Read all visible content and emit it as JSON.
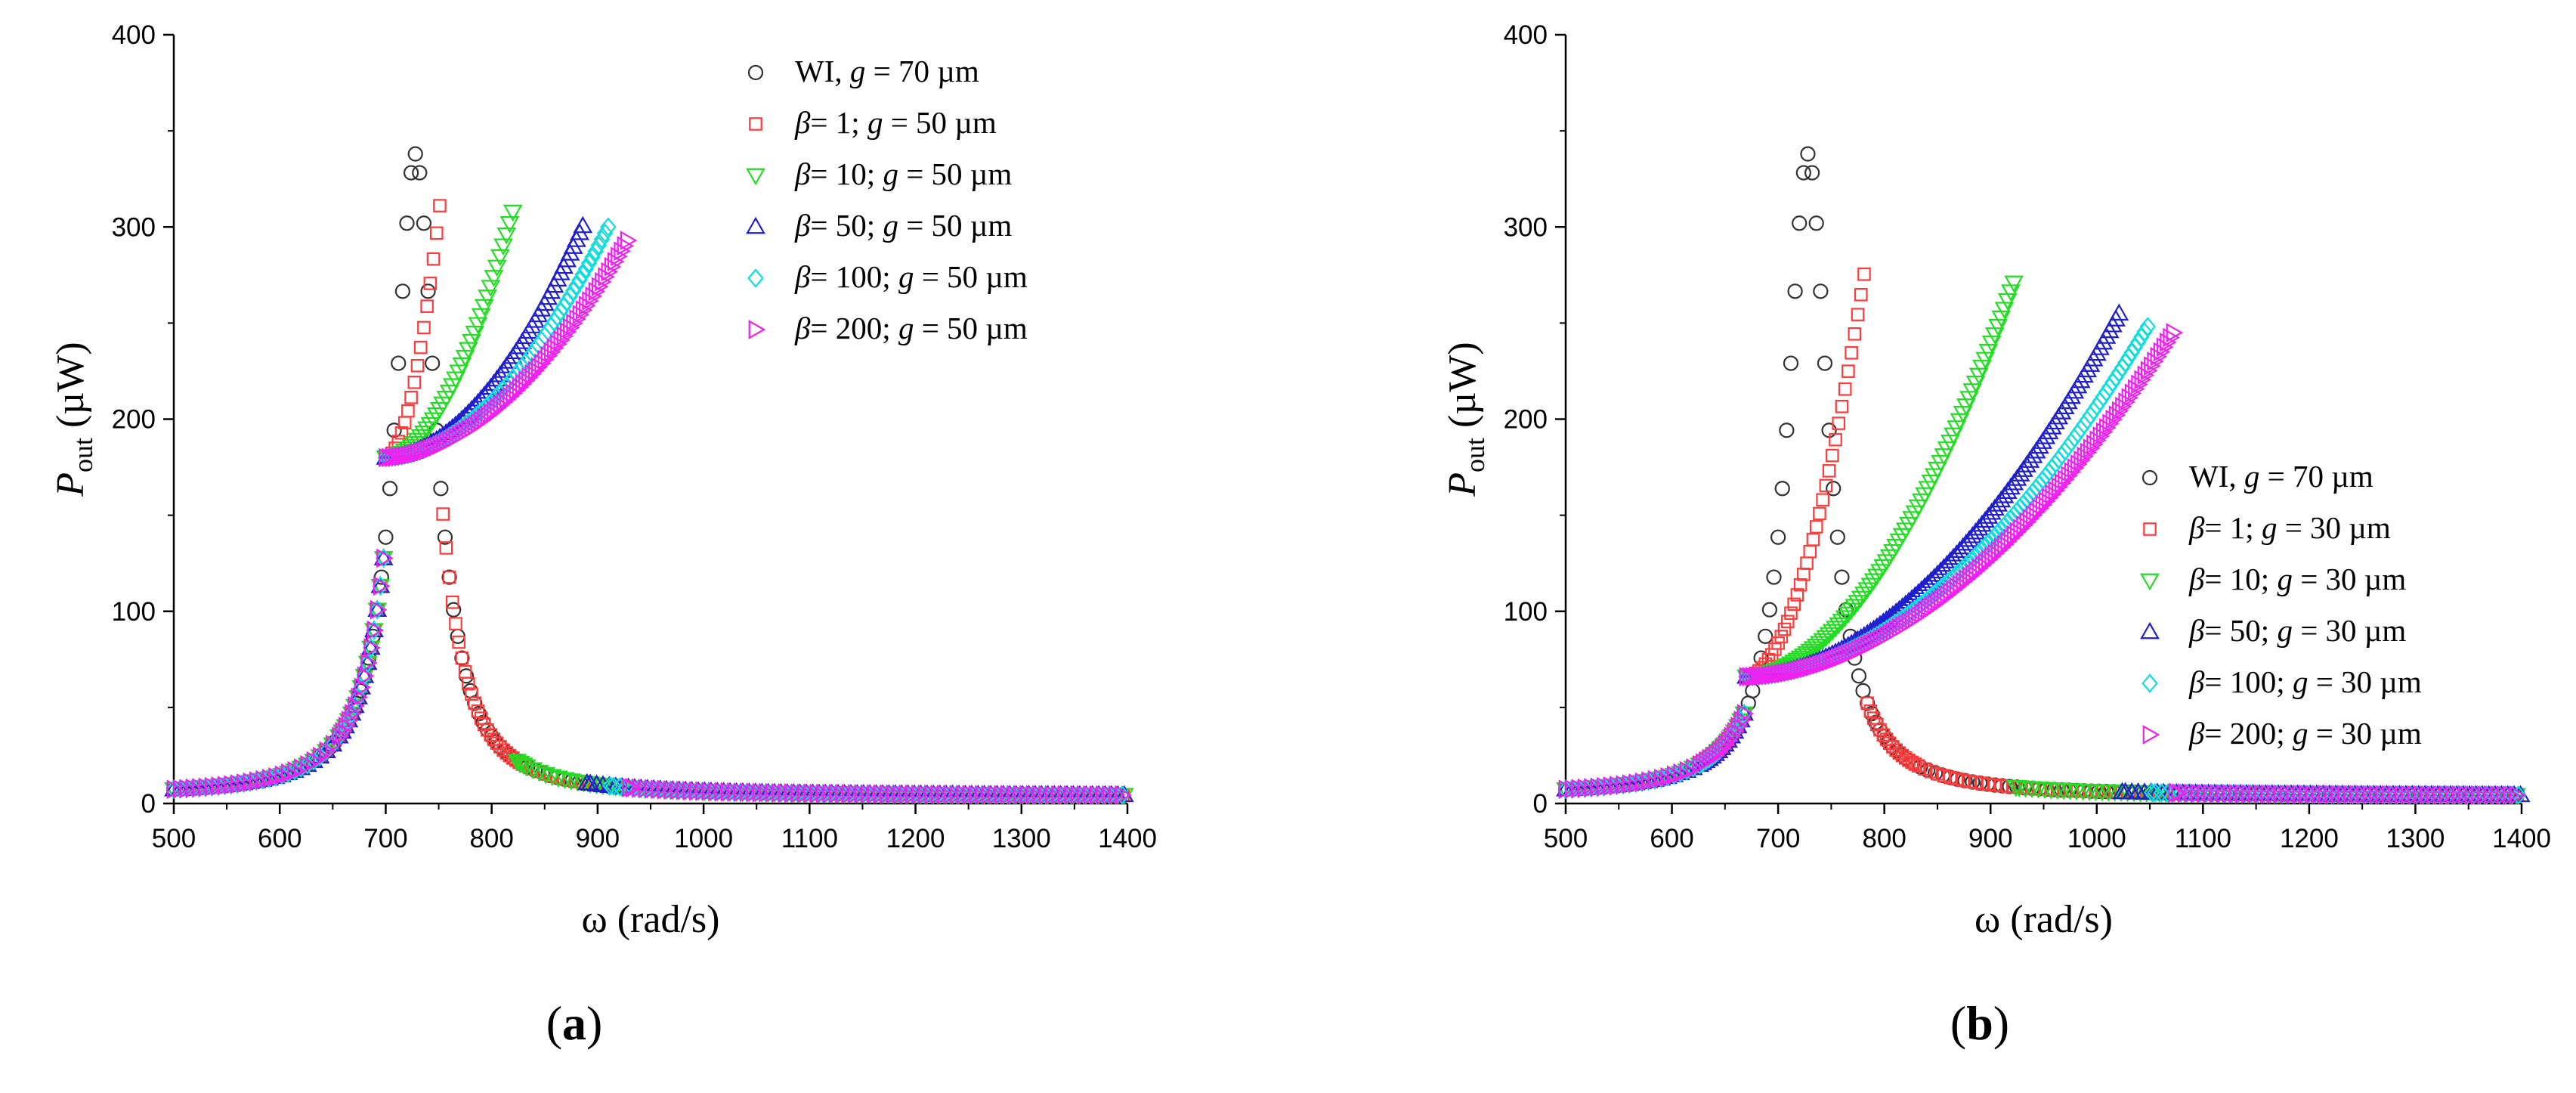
{
  "figure": {
    "panels": [
      "(a)",
      "(b)"
    ]
  },
  "chart_data": [
    {
      "type": "scatter",
      "panel": "(a)",
      "panel_label": {
        "open": "(",
        "letter": "a",
        "close": ")"
      },
      "xlabel": "ω (rad/s)",
      "ylabel": {
        "main": "P",
        "sub": "out",
        "unit": " (µW)"
      },
      "xlim": [
        500,
        1400
      ],
      "ylim": [
        0,
        400
      ],
      "xticks": [
        500,
        600,
        700,
        800,
        900,
        1000,
        1100,
        1200,
        1300,
        1400
      ],
      "yticks": [
        0,
        100,
        200,
        300,
        400
      ],
      "legend_position": "top-right",
      "series": [
        {
          "key": "wi",
          "legend": {
            "pre": "WI, ",
            "g": "70"
          },
          "marker": "circle",
          "color": "#333333",
          "x0": 500,
          "fres": 728,
          "peak": 338,
          "plateau": null,
          "wStart": null,
          "wEnd": null,
          "peakEnd": null
        },
        {
          "key": "b1",
          "legend": {
            "beta": "1",
            "sep": "; ",
            "g": "50"
          },
          "marker": "square",
          "color": "#ff3b3b",
          "x0": 500,
          "fres": 728,
          "peak": 338,
          "plateau": 180,
          "wStart": 700,
          "wEnd": 752,
          "peakEnd": 316
        },
        {
          "key": "b10",
          "legend": {
            "beta": "10",
            "sep": ";  ",
            "g": "50"
          },
          "marker": "tri-down",
          "color": "#22dd22",
          "x0": 500,
          "fres": 728,
          "peak": 338,
          "plateau": 180,
          "wStart": 700,
          "wEnd": 822,
          "peakEnd": 312
        },
        {
          "key": "b50",
          "legend": {
            "beta": "50",
            "sep": "; ",
            "g": "50"
          },
          "marker": "tri-up",
          "color": "#1f1fcf",
          "x0": 500,
          "fres": 728,
          "peak": 338,
          "plateau": 180,
          "wStart": 700,
          "wEnd": 888,
          "peakEnd": 303
        },
        {
          "key": "b100",
          "legend": {
            "beta": "100",
            "sep": "; ",
            "g": "50"
          },
          "marker": "diamond",
          "color": "#11dddd",
          "x0": 500,
          "fres": 728,
          "peak": 338,
          "plateau": 180,
          "wStart": 700,
          "wEnd": 910,
          "peakEnd": 300
        },
        {
          "key": "b200",
          "legend": {
            "beta": "200",
            "sep": "; ",
            "g": "50"
          },
          "marker": "tri-right",
          "color": "#ee22ee",
          "x0": 500,
          "fres": 728,
          "peak": 338,
          "plateau": 180,
          "wStart": 700,
          "wEnd": 928,
          "peakEnd": 293
        }
      ]
    },
    {
      "type": "scatter",
      "panel": "(b)",
      "panel_label": {
        "open": "(",
        "letter": "b",
        "close": ")"
      },
      "xlabel": "ω (rad/s)",
      "ylabel": {
        "main": "P",
        "sub": "out",
        "unit": " (µW)"
      },
      "xlim": [
        500,
        1400
      ],
      "ylim": [
        0,
        400
      ],
      "xticks": [
        500,
        600,
        700,
        800,
        900,
        1000,
        1100,
        1200,
        1300,
        1400
      ],
      "yticks": [
        0,
        100,
        200,
        300,
        400
      ],
      "legend_position": "center-right",
      "series": [
        {
          "key": "wi",
          "legend": {
            "pre": "WI, ",
            "g": "70"
          },
          "marker": "circle",
          "color": "#333333",
          "x0": 500,
          "fres": 728,
          "peak": 338,
          "plateau": null,
          "wStart": null,
          "wEnd": null,
          "peakEnd": null
        },
        {
          "key": "b1",
          "legend": {
            "beta": "1",
            "sep": "; ",
            "g": "30"
          },
          "marker": "square",
          "color": "#ff3b3b",
          "x0": 500,
          "fres": 728,
          "peak": 338,
          "plateau": 66,
          "wStart": 670,
          "wEnd": 782,
          "peakEnd": 279
        },
        {
          "key": "b10",
          "legend": {
            "beta": "10",
            "sep": ";  ",
            "g": "30"
          },
          "marker": "tri-down",
          "color": "#22dd22",
          "x0": 500,
          "fres": 728,
          "peak": 338,
          "plateau": 66,
          "wStart": 670,
          "wEnd": 922,
          "peakEnd": 271
        },
        {
          "key": "b50",
          "legend": {
            "beta": "50",
            "sep": "; ",
            "g": "30"
          },
          "marker": "tri-up",
          "color": "#1f1fcf",
          "x0": 500,
          "fres": 728,
          "peak": 338,
          "plateau": 66,
          "wStart": 670,
          "wEnd": 1022,
          "peakEnd": 256
        },
        {
          "key": "b100",
          "legend": {
            "beta": "100",
            "sep": "; ",
            "g": "30"
          },
          "marker": "diamond",
          "color": "#11dddd",
          "x0": 500,
          "fres": 728,
          "peak": 338,
          "plateau": 66,
          "wStart": 670,
          "wEnd": 1050,
          "peakEnd": 250
        },
        {
          "key": "b200",
          "legend": {
            "beta": "200",
            "sep": "; ",
            "g": "30"
          },
          "marker": "tri-right",
          "color": "#ee22ee",
          "x0": 500,
          "fres": 728,
          "peak": 338,
          "plateau": 66,
          "wStart": 670,
          "wEnd": 1072,
          "peakEnd": 245
        }
      ]
    }
  ]
}
